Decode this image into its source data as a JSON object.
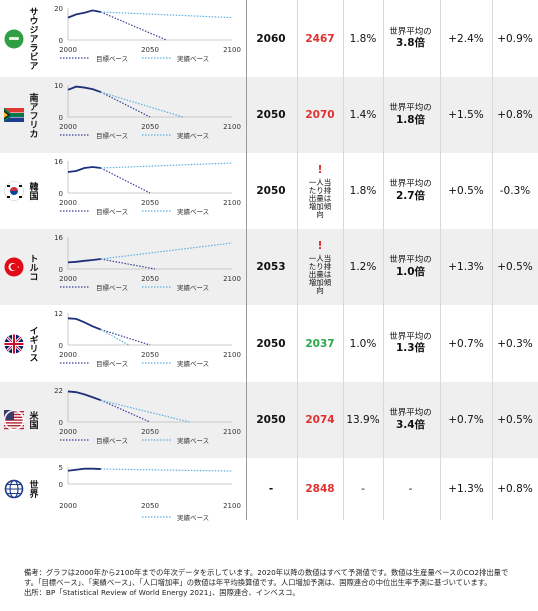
{
  "rows": [
    {
      "country": "サウジアラビア",
      "flag": "saudi",
      "ymax": 20,
      "yticks": [
        "0",
        "20"
      ],
      "xticks": [
        "2000",
        "2050",
        "2100"
      ],
      "legend": {
        "target": "目標ベース",
        "actual": "実績ベース"
      },
      "year": "2060",
      "value": "2467",
      "value_color": "red",
      "pop": "1.8%",
      "ratio_pre": "世界平均の",
      "ratio": "3.8倍",
      "g1": "+2.4%",
      "g2": "+0.9%"
    },
    {
      "country": "南アフリカ",
      "flag": "southafrica",
      "ymax": 10,
      "yticks": [
        "0",
        "10"
      ],
      "xticks": [
        "2000",
        "2050",
        "2100"
      ],
      "legend": {
        "target": "目標ベース",
        "actual": "実績ベース"
      },
      "year": "2050",
      "value": "2070",
      "value_color": "red",
      "pop": "1.4%",
      "ratio_pre": "世界平均の",
      "ratio": "1.8倍",
      "g1": "+1.5%",
      "g2": "+0.8%"
    },
    {
      "country": "韓国",
      "flag": "korea",
      "ymax": 16,
      "yticks": [
        "0",
        "16"
      ],
      "xticks": [
        "2000",
        "2050",
        "2100"
      ],
      "legend": {
        "target": "目標ベース",
        "actual": "実績ベース"
      },
      "year": "2050",
      "value": "!",
      "warning": "一人当たり排出量は増加傾向",
      "value_color": "red",
      "pop": "1.8%",
      "ratio_pre": "世界平均の",
      "ratio": "2.7倍",
      "g1": "+0.5%",
      "g2": "-0.3%"
    },
    {
      "country": "トルコ",
      "flag": "turkey",
      "ymax": 16,
      "yticks": [
        "0",
        "16"
      ],
      "xticks": [
        "2000",
        "2050",
        "2100"
      ],
      "legend": {
        "target": "目標ベース",
        "actual": "実績ベース"
      },
      "year": "2053",
      "value": "!",
      "warning": "一人当たり排出量は増加傾向",
      "value_color": "red",
      "pop": "1.2%",
      "ratio_pre": "世界平均の",
      "ratio": "1.0倍",
      "g1": "+1.3%",
      "g2": "+0.5%"
    },
    {
      "country": "イギリス",
      "flag": "uk",
      "ymax": 12,
      "yticks": [
        "0",
        "12"
      ],
      "xticks": [
        "2000",
        "2050",
        "2100"
      ],
      "legend": {
        "target": "目標ベース",
        "actual": "実績ベース"
      },
      "year": "2050",
      "value": "2037",
      "value_color": "green",
      "pop": "1.0%",
      "ratio_pre": "世界平均の",
      "ratio": "1.3倍",
      "g1": "+0.7%",
      "g2": "+0.3%"
    },
    {
      "country": "米国",
      "flag": "usa",
      "ymax": 22,
      "yticks": [
        "0",
        "22"
      ],
      "xticks": [
        "2000",
        "2050",
        "2100"
      ],
      "legend": {
        "target": "目標ベース",
        "actual": "実績ベース"
      },
      "year": "2050",
      "value": "2074",
      "value_color": "red",
      "pop": "13.9%",
      "ratio_pre": "世界平均の",
      "ratio": "3.4倍",
      "g1": "+0.7%",
      "g2": "+0.5%"
    },
    {
      "country": "世界",
      "flag": "world",
      "ymax": 5,
      "yticks": [
        "0",
        "5"
      ],
      "xticks": [
        "2000",
        "2050",
        "2100"
      ],
      "legend": {
        "target": "",
        "actual": "実績ベース"
      },
      "year": "-",
      "value": "2848",
      "value_color": "red",
      "pop": "-",
      "ratio_pre": "",
      "ratio": "-",
      "g1": "+1.3%",
      "g2": "+0.8%"
    }
  ],
  "chart_data": [
    {
      "type": "line",
      "title": "サウジアラビア",
      "xlim": [
        2000,
        2100
      ],
      "ylim": [
        0,
        20
      ],
      "series": [
        {
          "name": "実績",
          "x": [
            2000,
            2005,
            2010,
            2015,
            2020
          ],
          "y": [
            14,
            16,
            17,
            18.5,
            17.5
          ]
        },
        {
          "name": "目標ベース",
          "x": [
            2020,
            2060
          ],
          "y": [
            17.5,
            0
          ]
        },
        {
          "name": "実績ベース",
          "x": [
            2020,
            2100
          ],
          "y": [
            17.5,
            14
          ]
        }
      ]
    },
    {
      "type": "line",
      "title": "南アフリカ",
      "xlim": [
        2000,
        2100
      ],
      "ylim": [
        0,
        10
      ],
      "series": [
        {
          "name": "実績",
          "x": [
            2000,
            2005,
            2010,
            2015,
            2020
          ],
          "y": [
            8.5,
            9.5,
            9.2,
            8.7,
            7.8
          ]
        },
        {
          "name": "目標ベース",
          "x": [
            2020,
            2050
          ],
          "y": [
            7.8,
            0
          ]
        },
        {
          "name": "実績ベース",
          "x": [
            2020,
            2070
          ],
          "y": [
            7.8,
            0
          ]
        }
      ]
    },
    {
      "type": "line",
      "title": "韓国",
      "xlim": [
        2000,
        2100
      ],
      "ylim": [
        0,
        16
      ],
      "series": [
        {
          "name": "実績",
          "x": [
            2000,
            2005,
            2010,
            2015,
            2020
          ],
          "y": [
            10.5,
            11,
            12.5,
            13,
            12.5
          ]
        },
        {
          "name": "目標ベース",
          "x": [
            2020,
            2050
          ],
          "y": [
            12.5,
            0
          ]
        },
        {
          "name": "実績ベース",
          "x": [
            2020,
            2100
          ],
          "y": [
            12.5,
            15
          ]
        }
      ]
    },
    {
      "type": "line",
      "title": "トルコ",
      "xlim": [
        2000,
        2100
      ],
      "ylim": [
        0,
        16
      ],
      "series": [
        {
          "name": "実績",
          "x": [
            2000,
            2005,
            2010,
            2015,
            2020
          ],
          "y": [
            3.3,
            3.6,
            4.1,
            4.5,
            5
          ]
        },
        {
          "name": "目標ベース",
          "x": [
            2020,
            2053
          ],
          "y": [
            5,
            0
          ]
        },
        {
          "name": "実績ベース",
          "x": [
            2020,
            2100
          ],
          "y": [
            5,
            13
          ]
        }
      ]
    },
    {
      "type": "line",
      "title": "イギリス",
      "xlim": [
        2000,
        2100
      ],
      "ylim": [
        0,
        12
      ],
      "series": [
        {
          "name": "実績",
          "x": [
            2000,
            2005,
            2010,
            2015,
            2020
          ],
          "y": [
            10,
            9.8,
            8.5,
            7,
            5.8
          ]
        },
        {
          "name": "目標ベース",
          "x": [
            2020,
            2050
          ],
          "y": [
            5.8,
            0
          ]
        },
        {
          "name": "実績ベース",
          "x": [
            2020,
            2037
          ],
          "y": [
            5.8,
            0
          ]
        }
      ]
    },
    {
      "type": "line",
      "title": "米国",
      "xlim": [
        2000,
        2100
      ],
      "ylim": [
        0,
        22
      ],
      "series": [
        {
          "name": "実績",
          "x": [
            2000,
            2005,
            2010,
            2015,
            2020
          ],
          "y": [
            21,
            20.5,
            19,
            17,
            15
          ]
        },
        {
          "name": "目標ベース",
          "x": [
            2020,
            2050
          ],
          "y": [
            15,
            0
          ]
        },
        {
          "name": "実績ベース",
          "x": [
            2020,
            2074
          ],
          "y": [
            15,
            0
          ]
        }
      ]
    },
    {
      "type": "line",
      "title": "世界",
      "xlim": [
        2000,
        2100
      ],
      "ylim": [
        0,
        5
      ],
      "series": [
        {
          "name": "実績",
          "x": [
            2000,
            2005,
            2010,
            2015,
            2020
          ],
          "y": [
            3.9,
            4.2,
            4.5,
            4.5,
            4.4
          ]
        },
        {
          "name": "実績ベース",
          "x": [
            2020,
            2100
          ],
          "y": [
            4.4,
            3.8
          ]
        }
      ]
    }
  ],
  "colors": {
    "actual": "#1f2f7a",
    "target": "#3a3f9a",
    "trend": "#5ab0e0",
    "red": "#e03030",
    "green": "#2aa84a"
  },
  "note": {
    "line1": "備考：グラフは2000年から2100年までの年次データを示しています。2020年以降の数値はすべて予測値です。数値は生産量ベースのCO2排出量で",
    "line2": "す。「目標ベース」、「実績ベース」、「人口増加率」の数値は年平均換算値です。人口増加予測は、国際連合の中位出生率予測に基づいています。",
    "line3": "出所：BP「Statistical Review of World Energy 2021」、国際連合、インベスコ。"
  }
}
